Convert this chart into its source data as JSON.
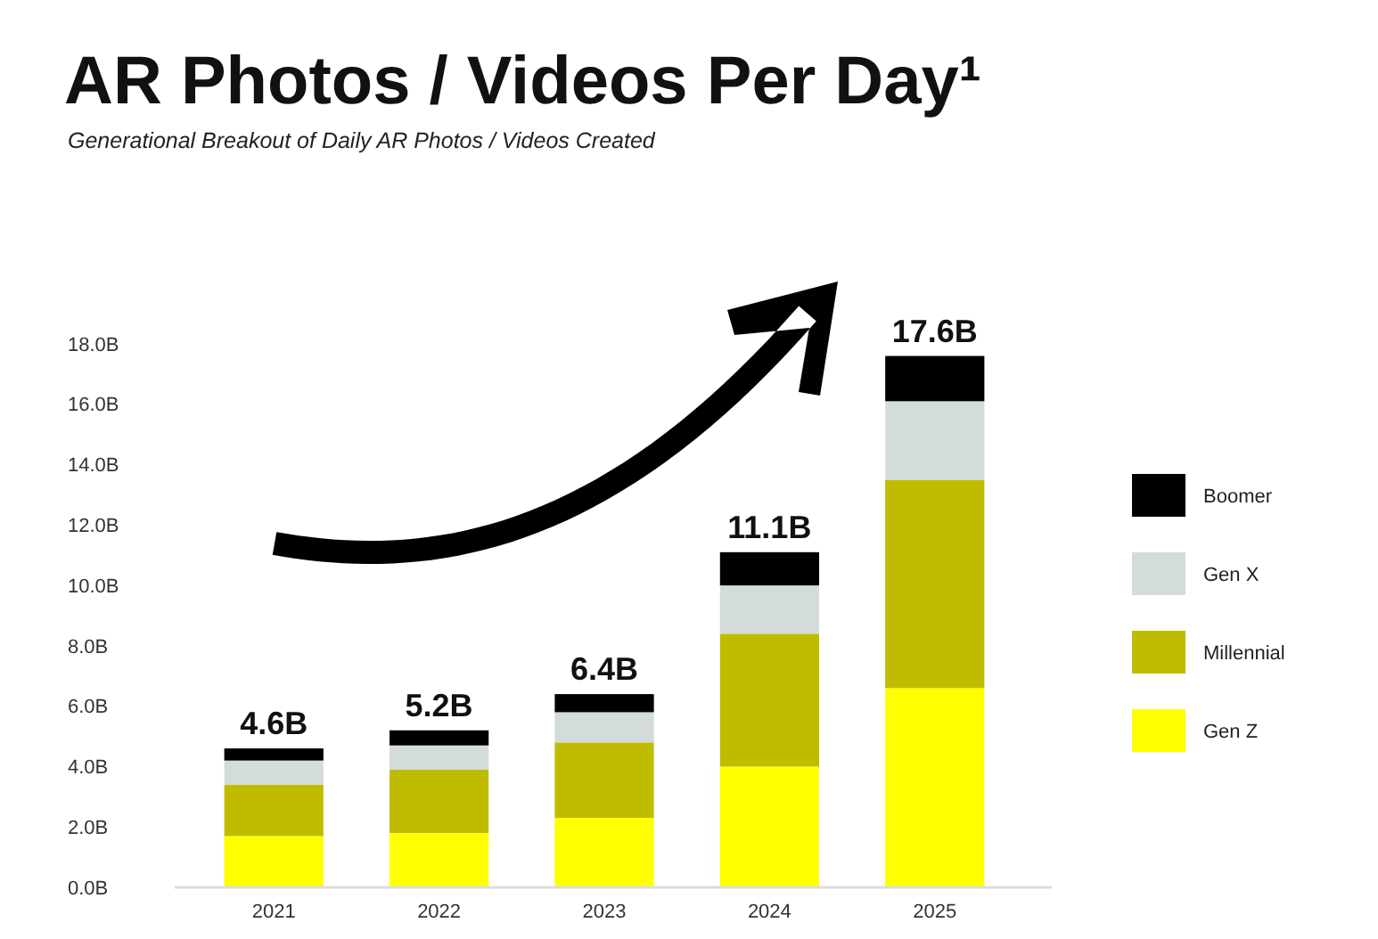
{
  "chart_data": {
    "type": "bar",
    "title": "AR Photos / Videos Per Day¹",
    "subtitle": "Generational Breakout of Daily AR Photos / Videos Created",
    "categories": [
      "2021",
      "2022",
      "2023",
      "2024",
      "2025"
    ],
    "stacked": true,
    "series": [
      {
        "name": "Gen Z",
        "color": "#ffff00",
        "values": [
          1.7,
          1.8,
          2.3,
          4.0,
          6.6
        ]
      },
      {
        "name": "Millennial",
        "color": "#bfbc00",
        "values": [
          1.7,
          2.1,
          2.5,
          4.4,
          6.9
        ]
      },
      {
        "name": "Gen X",
        "color": "#d3dcdb",
        "values": [
          0.8,
          0.8,
          1.0,
          1.6,
          2.6
        ]
      },
      {
        "name": "Boomer",
        "color": "#000000",
        "values": [
          0.4,
          0.5,
          0.6,
          1.1,
          1.5
        ]
      }
    ],
    "totals": [
      "4.6B",
      "5.2B",
      "6.4B",
      "11.1B",
      "17.6B"
    ],
    "ylim": [
      0,
      18
    ],
    "yticks": [
      {
        "value": 0,
        "label": "0.0B"
      },
      {
        "value": 2,
        "label": "2.0B"
      },
      {
        "value": 4,
        "label": "4.0B"
      },
      {
        "value": 6,
        "label": "6.0B"
      },
      {
        "value": 8,
        "label": "8.0B"
      },
      {
        "value": 10,
        "label": "10.0B"
      },
      {
        "value": 12,
        "label": "12.0B"
      },
      {
        "value": 14,
        "label": "14.0B"
      },
      {
        "value": 16,
        "label": "16.0B"
      },
      {
        "value": 18,
        "label": "18.0B"
      }
    ],
    "grid": false,
    "legend": "right"
  }
}
